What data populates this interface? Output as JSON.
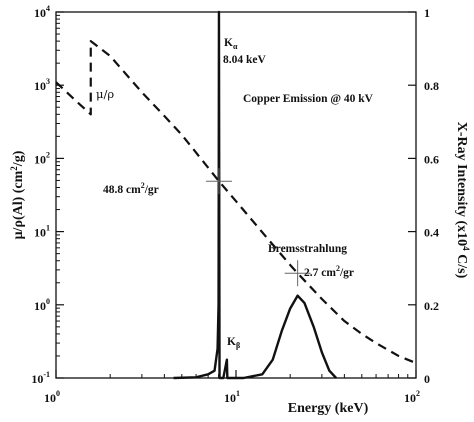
{
  "chart_data": {
    "type": "line",
    "x_axis": {
      "label": "Energy (keV)",
      "scale": "log",
      "range": [
        1,
        100
      ],
      "tick_values": [
        1,
        10,
        100
      ],
      "tick_labels": [
        {
          "base": "10",
          "exp": "0"
        },
        {
          "base": "10",
          "exp": "1"
        },
        {
          "base": "10",
          "exp": "2"
        }
      ]
    },
    "y_left_axis": {
      "label_parts": [
        "μ/ρ(Al) (cm",
        "2",
        "/g)"
      ],
      "scale": "log",
      "range": [
        0.1,
        10000
      ],
      "tick_values": [
        0.1,
        1,
        10,
        100,
        1000,
        10000
      ],
      "tick_labels": [
        {
          "base": "10",
          "exp": "-1"
        },
        {
          "base": "10",
          "exp": "0"
        },
        {
          "base": "10",
          "exp": "1"
        },
        {
          "base": "10",
          "exp": "2"
        },
        {
          "base": "10",
          "exp": "3"
        },
        {
          "base": "10",
          "exp": "4"
        }
      ]
    },
    "y_right_axis": {
      "label_parts": [
        "X-Ray Intensity (x10",
        "4",
        " C/s)"
      ],
      "scale": "linear",
      "range": [
        0,
        1
      ],
      "tick_values": [
        0,
        0.2,
        0.4,
        0.6,
        0.8,
        1
      ],
      "tick_labels": [
        "0",
        "0.2",
        "0.4",
        "0.6",
        "0.8",
        "1"
      ]
    },
    "series": [
      {
        "name": "μ/ρ",
        "axis": "left",
        "style": "dashed",
        "points": [
          [
            1.0,
            1100
          ],
          [
            1.3,
            600
          ],
          [
            1.56,
            400
          ],
          [
            1.56,
            4000
          ],
          [
            2.0,
            2500
          ],
          [
            3.0,
            800
          ],
          [
            4.0,
            380
          ],
          [
            5.0,
            210
          ],
          [
            6.0,
            120
          ],
          [
            8.04,
            48.8
          ],
          [
            10.0,
            26
          ],
          [
            15.0,
            8
          ],
          [
            20.0,
            3.5
          ],
          [
            22.0,
            2.7
          ],
          [
            30.0,
            1.2
          ],
          [
            40.0,
            0.6
          ],
          [
            50.0,
            0.4
          ],
          [
            60.0,
            0.3
          ],
          [
            80.0,
            0.2
          ],
          [
            100.0,
            0.16
          ]
        ]
      },
      {
        "name": "Copper Emission @ 40 kV",
        "axis": "right",
        "style": "solid",
        "points": [
          [
            4.5,
            0.0
          ],
          [
            6.0,
            0.002
          ],
          [
            7.0,
            0.01
          ],
          [
            7.6,
            0.02
          ],
          [
            7.9,
            0.08
          ],
          [
            8.0,
            0.2
          ],
          [
            8.04,
            1.0
          ],
          [
            8.1,
            0.0
          ],
          [
            8.5,
            0.0
          ],
          [
            8.9,
            0.05
          ],
          [
            8.95,
            0.0
          ],
          [
            11.0,
            0.0
          ],
          [
            14.0,
            0.01
          ],
          [
            16.0,
            0.05
          ],
          [
            18.0,
            0.13
          ],
          [
            20.0,
            0.19
          ],
          [
            22.0,
            0.225
          ],
          [
            24.0,
            0.205
          ],
          [
            27.0,
            0.14
          ],
          [
            30.0,
            0.07
          ],
          [
            33.0,
            0.02
          ],
          [
            36.0,
            0.0
          ]
        ]
      }
    ],
    "annotations": {
      "mu_rho": "μ/ρ",
      "k_alpha_main": "K",
      "k_alpha_sub": "α",
      "k_alpha_energy": "8.04 keV",
      "title": "Copper Emission @ 40 kV",
      "value_48": "48.8 cm",
      "value_48_sup": "2",
      "value_48_tail": "/gr",
      "brems": "Bremsstrahlung",
      "value_27": "2.7 cm",
      "value_27_sup": "2",
      "value_27_tail": "/gr",
      "k_beta_main": "K",
      "k_beta_sub": "β"
    },
    "markers": [
      {
        "x": 8.04,
        "y": 48.8
      },
      {
        "x": 22.0,
        "y": 2.7
      }
    ],
    "grid": false,
    "legend": "none"
  }
}
